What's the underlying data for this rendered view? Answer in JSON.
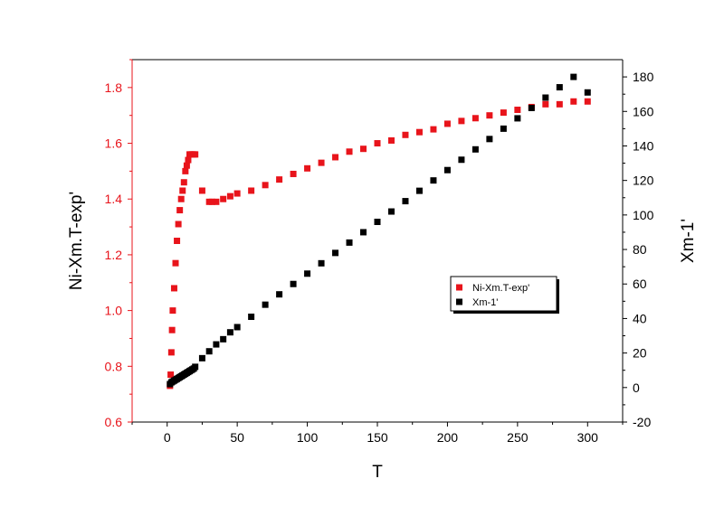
{
  "chart_data": {
    "type": "scatter",
    "x_axis": {
      "label": "T",
      "range": [
        -25,
        325
      ],
      "ticks": [
        0,
        50,
        100,
        150,
        200,
        250,
        300
      ],
      "tick_labels": [
        "0",
        "50",
        "100",
        "150",
        "200",
        "250",
        "300"
      ]
    },
    "y_left_axis": {
      "label": "Ni-Xm.T-exp'",
      "range": [
        0.6,
        1.9
      ],
      "ticks": [
        0.6,
        0.8,
        1.0,
        1.2,
        1.4,
        1.6,
        1.8
      ],
      "tick_labels": [
        "0.6",
        "0.8",
        "1.0",
        "1.2",
        "1.4",
        "1.6",
        "1.8"
      ],
      "color": "#e8141b"
    },
    "y_right_axis": {
      "label": "Xm-1'",
      "range": [
        -20,
        190
      ],
      "ticks": [
        -20,
        0,
        20,
        40,
        60,
        80,
        100,
        120,
        140,
        160,
        180
      ],
      "tick_labels": [
        "-20",
        "0",
        "20",
        "40",
        "60",
        "80",
        "100",
        "120",
        "140",
        "160",
        "180"
      ],
      "color": "#000000"
    },
    "grid": false,
    "legend": "center-right",
    "series": [
      {
        "name": "Ni-Xm.T-exp'",
        "axis": "left",
        "color": "#e8141b",
        "x": [
          2,
          2.5,
          3,
          3.5,
          4,
          5,
          6,
          7,
          8,
          9,
          10,
          11,
          12,
          13,
          14,
          15,
          16,
          17,
          18,
          19,
          20,
          25,
          30,
          32,
          35,
          40,
          45,
          50,
          60,
          70,
          80,
          90,
          100,
          110,
          120,
          130,
          140,
          150,
          160,
          170,
          180,
          190,
          200,
          210,
          220,
          230,
          240,
          250,
          260,
          270,
          280,
          290,
          300
        ],
        "y": [
          0.73,
          0.77,
          0.85,
          0.93,
          1.0,
          1.08,
          1.17,
          1.25,
          1.31,
          1.36,
          1.4,
          1.43,
          1.46,
          1.5,
          1.52,
          1.54,
          1.56,
          1.56,
          1.56,
          1.56,
          1.56,
          1.43,
          1.39,
          1.39,
          1.39,
          1.4,
          1.41,
          1.42,
          1.43,
          1.45,
          1.47,
          1.49,
          1.51,
          1.53,
          1.55,
          1.57,
          1.58,
          1.6,
          1.61,
          1.63,
          1.64,
          1.65,
          1.67,
          1.68,
          1.69,
          1.7,
          1.71,
          1.72,
          1.73,
          1.74,
          1.74,
          1.75,
          1.75
        ]
      },
      {
        "name": "Xm-1'",
        "axis": "right",
        "color": "#000000",
        "x": [
          2,
          3,
          4,
          5,
          6,
          7,
          8,
          9,
          10,
          11,
          12,
          13,
          14,
          15,
          16,
          17,
          18,
          19,
          20,
          25,
          30,
          35,
          40,
          45,
          50,
          60,
          70,
          80,
          90,
          100,
          110,
          120,
          130,
          140,
          150,
          160,
          170,
          180,
          190,
          200,
          210,
          220,
          230,
          240,
          250,
          260,
          270,
          280,
          290,
          300
        ],
        "y": [
          2,
          3,
          3.5,
          4,
          4.5,
          5,
          5.5,
          6,
          6.5,
          7,
          7.5,
          8,
          8.5,
          9,
          9.5,
          10,
          10.5,
          11,
          12,
          17,
          21,
          25,
          28,
          32,
          35,
          41,
          48,
          54,
          60,
          66,
          72,
          78,
          84,
          90,
          96,
          102,
          108,
          114,
          120,
          126,
          132,
          138,
          144,
          150,
          156,
          162,
          168,
          174,
          180,
          171
        ]
      }
    ]
  }
}
